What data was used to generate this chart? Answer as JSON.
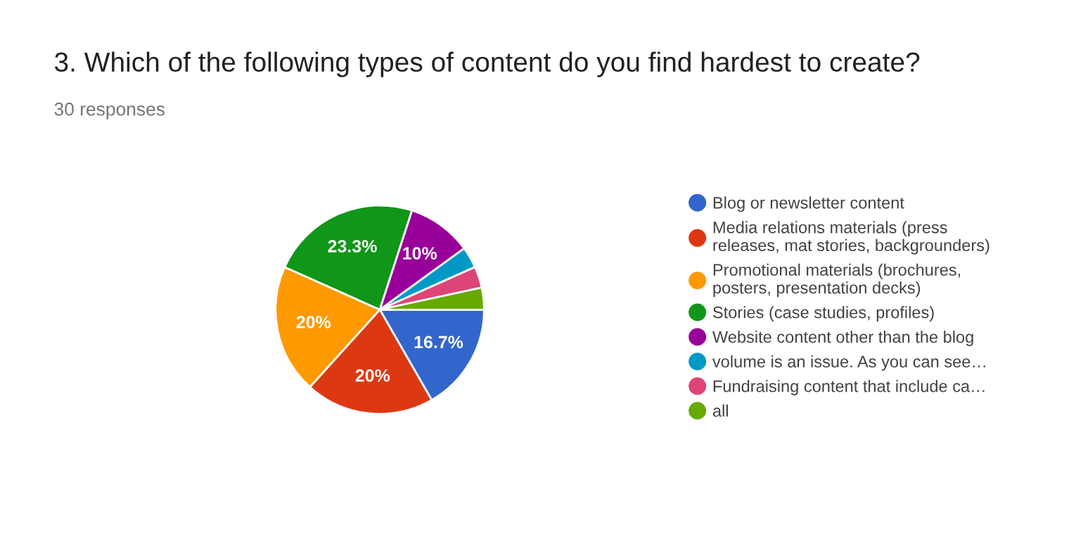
{
  "chart_data": {
    "type": "pie",
    "title": "3. Which of the following types of content do you find hardest to create?",
    "subtitle": "30 responses",
    "categories": [
      "Blog or newsletter content",
      "Media relations materials (press releases, mat stories, backgrounders)",
      "Promotional materials (brochures, posters, presentation decks)",
      "Stories (case studies, profiles)",
      "Website content other than the blog",
      "volume is an issue. As you can see…",
      "Fundraising content that include ca…",
      "all"
    ],
    "values": [
      16.7,
      20,
      20,
      23.3,
      10,
      3.3,
      3.3,
      3.4
    ],
    "colors": [
      "#3366cc",
      "#dc3912",
      "#ff9900",
      "#109618",
      "#990099",
      "#0099c6",
      "#dd4477",
      "#66aa00"
    ],
    "value_labels": [
      "16.7%",
      "20%",
      "20%",
      "23.3%",
      "10%",
      null,
      null,
      null
    ],
    "legend": "right"
  }
}
